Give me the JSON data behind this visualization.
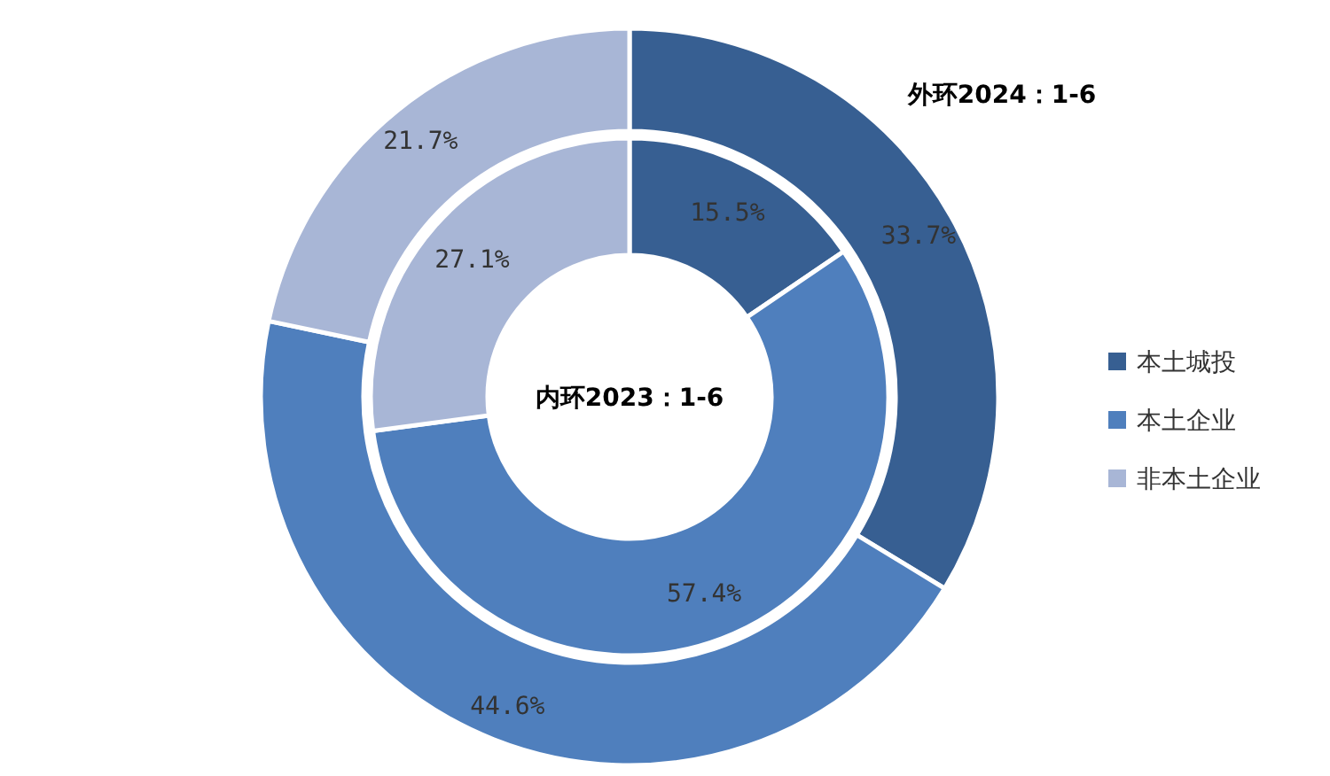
{
  "chart_data": {
    "type": "donut",
    "categories": [
      "本土城投",
      "本土企业",
      "非本土企业"
    ],
    "colors": [
      "#375f92",
      "#4f7fbd",
      "#a8b6d6"
    ],
    "legend": "right",
    "series": [
      {
        "name": "外环2024：1-6",
        "values": [
          33.7,
          44.6,
          21.7
        ],
        "value_labels": [
          "33.7%",
          "44.6%",
          "21.7%"
        ]
      },
      {
        "name": "内环2023：1-6",
        "values": [
          15.5,
          57.4,
          27.1
        ],
        "value_labels": [
          "15.5%",
          "57.4%",
          "27.1%"
        ]
      }
    ]
  }
}
